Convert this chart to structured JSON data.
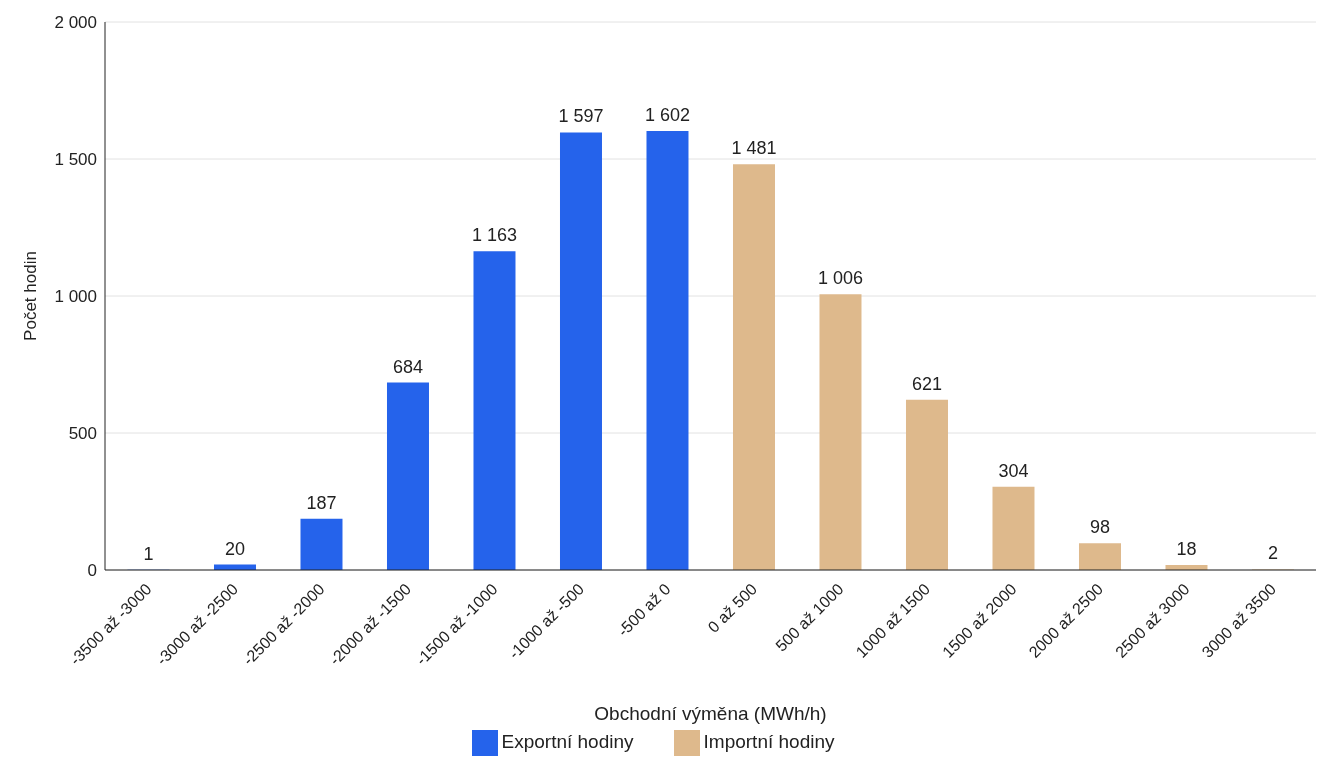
{
  "chart_data": {
    "type": "bar",
    "xlabel": "Obchodní výměna (MWh/h)",
    "ylabel": "Počet hodin",
    "categories": [
      "-3500 až -3000",
      "-3000 až -2500",
      "-2500 až -2000",
      "-2000 až -1500",
      "-1500 až -1000",
      "-1000 až -500",
      "-500 až 0",
      "0 až 500",
      "500 až 1000",
      "1000 až 1500",
      "1500 až 2000",
      "2000 až 2500",
      "2500 až 3000",
      "3000 až 3500"
    ],
    "series": [
      {
        "name": "Exportní hodiny",
        "color": "#2563eb",
        "values": [
          1,
          20,
          187,
          684,
          1163,
          1597,
          1602,
          null,
          null,
          null,
          null,
          null,
          null,
          null
        ],
        "value_labels": [
          "1",
          "20",
          "187",
          "684",
          "1 163",
          "1 597",
          "1 602",
          null,
          null,
          null,
          null,
          null,
          null,
          null
        ]
      },
      {
        "name": "Importní hodiny",
        "color": "#deb98c",
        "values": [
          null,
          null,
          null,
          null,
          null,
          null,
          null,
          1481,
          1006,
          621,
          304,
          98,
          18,
          2
        ],
        "value_labels": [
          null,
          null,
          null,
          null,
          null,
          null,
          null,
          "1 481",
          "1 006",
          "621",
          "304",
          "98",
          "18",
          "2"
        ]
      }
    ],
    "ylim": [
      0,
      2000
    ],
    "yticks": [
      0,
      500,
      {
        "value": 1000,
        "label": "1 000"
      },
      {
        "value": 1500,
        "label": "1 500"
      },
      {
        "value": 2000,
        "label": "2 000"
      }
    ],
    "grid": "y",
    "legend": "bottom"
  }
}
